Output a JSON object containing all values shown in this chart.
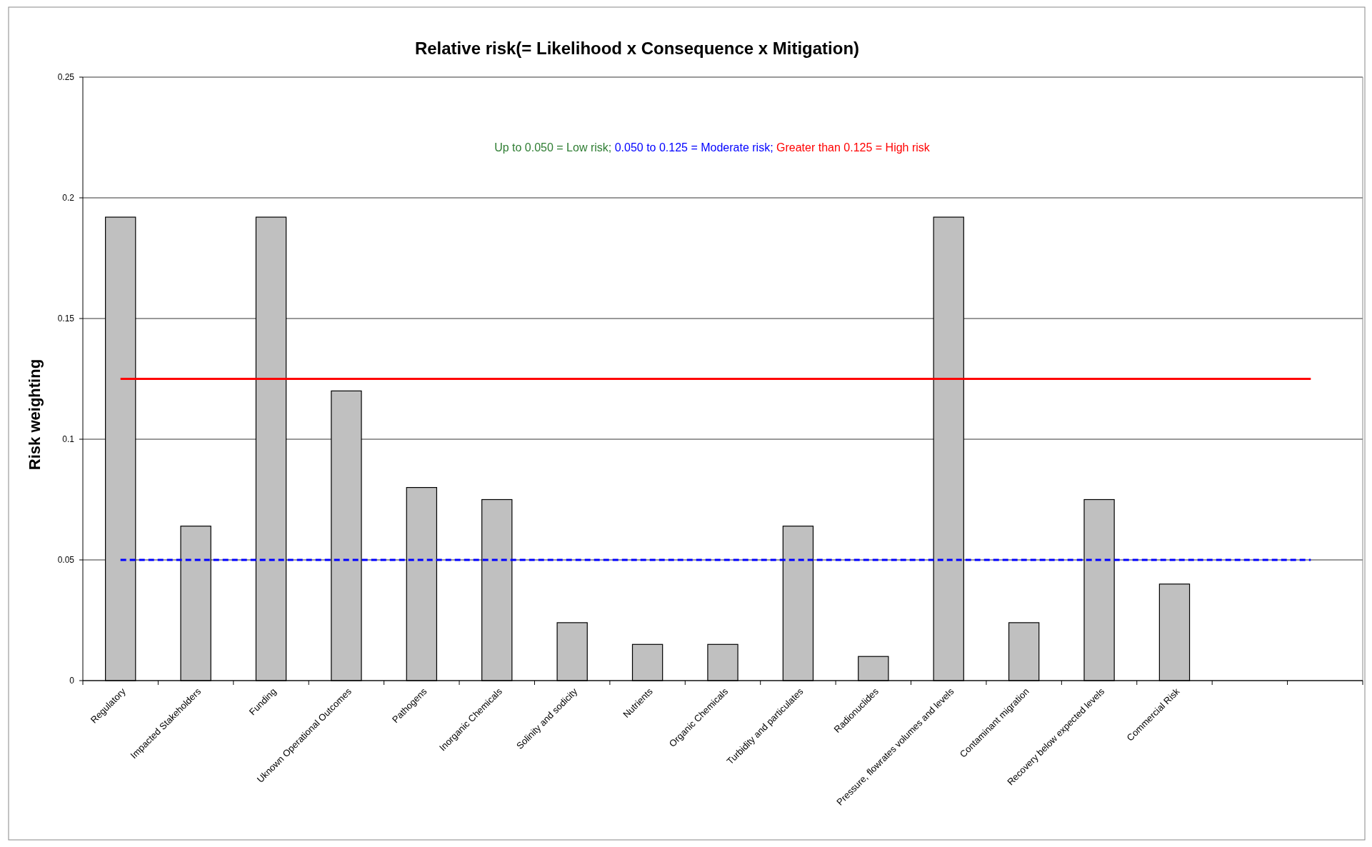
{
  "chart_data": {
    "type": "bar",
    "title": "Relative risk(= Likelihood x Consequence x Mitigation)",
    "ylabel": "Risk weighting",
    "categories": [
      "Regulatory",
      "Impacted Stakeholders",
      "Funding",
      "Uknown Operational Outcomes",
      "Pathogens",
      "Inorganic Chemicals",
      "Solinity and sodicity",
      "Nutrients",
      "Organic Chemicals",
      "Turbidity and particulates",
      "Radionuclides",
      "Pressure, flowrates volumes and levels",
      "Contaminant  migration",
      "Recovery below expected levels",
      "Commercial Risk",
      null,
      null
    ],
    "values": [
      0.192,
      0.064,
      0.192,
      0.12,
      0.08,
      0.075,
      0.024,
      0.015,
      0.015,
      0.064,
      0.01,
      0.192,
      0.024,
      0.075,
      0.04,
      null,
      null
    ],
    "color": "#c0c0c0",
    "ylim": [
      0,
      0.25
    ],
    "yticks": [
      0,
      0.05,
      0.1,
      0.15,
      0.2,
      0.25
    ],
    "grid": "y",
    "ref_lines": [
      {
        "axis": "y",
        "value": 0.125,
        "color": "#ff0000",
        "line_style": "solid"
      },
      {
        "axis": "y",
        "value": 0.05,
        "color": "#0000ff",
        "line_style": "dashed"
      }
    ],
    "annotations": [
      "Up to 0.050 = Low risk; ",
      "0.050 to 0.125 = Moderate risk; ",
      "Greater than 0.125 = High risk"
    ]
  }
}
